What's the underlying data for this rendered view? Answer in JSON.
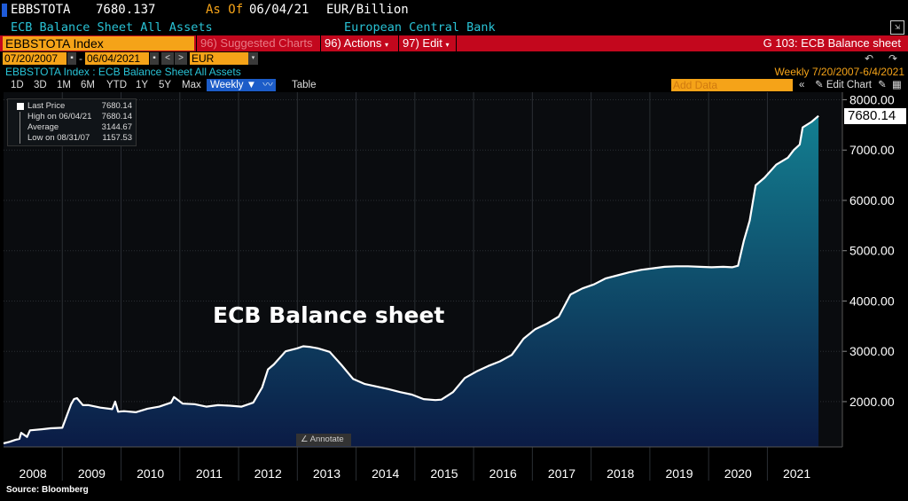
{
  "header": {
    "ticker": "EBBSTOTA",
    "price": "7680.137",
    "as_of_label": "As Of",
    "as_of_date": "06/04/21",
    "units": "EUR/Billion",
    "description": "ECB Balance Sheet All Assets",
    "source_name": "European Central Bank"
  },
  "toolbar": {
    "index_field": "EBBSTOTA Index",
    "suggested": "96) Suggested Charts",
    "actions": "96) Actions",
    "edit": "97) Edit",
    "chart_id": "G 103: ECB Balance sheet"
  },
  "dates": {
    "start": "07/20/2007",
    "dash": "-",
    "end": "06/04/2021",
    "currency": "EUR"
  },
  "subtitle": {
    "left": "EBBSTOTA Index : ECB Balance Sheet All Assets",
    "right": "Weekly  7/20/2007-6/4/2021"
  },
  "ranges": {
    "items": [
      "1D",
      "3D",
      "1M",
      "6M",
      "YTD",
      "1Y",
      "5Y",
      "Max"
    ],
    "selected": "Weekly ▼",
    "table": "Table",
    "add_data": "Add Data",
    "edit_chart": "Edit Chart"
  },
  "legend": {
    "last_label": "Last Price",
    "last_value": "7680.14",
    "high_label": "High on 06/04/21",
    "high_value": "7680.14",
    "avg_label": "Average",
    "avg_value": "3144.67",
    "low_label": "Low on 08/31/07",
    "low_value": "1157.53"
  },
  "annotate": "Annotate",
  "overlay_title": "ECB Balance sheet",
  "source": "Source:  Bloomberg",
  "colors": {
    "line": "#ffffff",
    "fill_top": "#137f91",
    "fill_bottom": "#0b1b45",
    "background": "#000000",
    "accent_orange": "#f5a318",
    "accent_red": "#c3071d"
  },
  "chart_data": {
    "type": "area",
    "title": "",
    "xlabel": "",
    "ylabel": "",
    "ylim": [
      1100,
      8150
    ],
    "yticks": [
      2000,
      3000,
      4000,
      5000,
      6000,
      7000,
      8000
    ],
    "ytick_labels": [
      "2000.00",
      "3000.00",
      "4000.00",
      "5000.00",
      "6000.00",
      "7000.00",
      "8000.00"
    ],
    "xlim": [
      2007.55,
      2021.6
    ],
    "xticks": [
      2008,
      2009,
      2010,
      2011,
      2012,
      2013,
      2014,
      2015,
      2016,
      2017,
      2018,
      2019,
      2020,
      2021
    ],
    "xtick_labels": [
      "2008",
      "2009",
      "2010",
      "2011",
      "2012",
      "2013",
      "2014",
      "2015",
      "2016",
      "2017",
      "2018",
      "2019",
      "2020",
      "2021"
    ],
    "last_value": "7680.14",
    "series": [
      {
        "x": [
          2007.55,
          2007.65,
          2007.75,
          2007.82,
          2007.85,
          2007.95,
          2008.0,
          2008.2,
          2008.35,
          2008.55,
          2008.7,
          2008.75,
          2008.8,
          2008.9,
          2009.0,
          2009.2,
          2009.4,
          2009.45,
          2009.5,
          2009.6,
          2009.8,
          2010.0,
          2010.2,
          2010.4,
          2010.45,
          2010.6,
          2010.8,
          2011.0,
          2011.2,
          2011.4,
          2011.6,
          2011.8,
          2011.95,
          2012.05,
          2012.15,
          2012.35,
          2012.55,
          2012.65,
          2012.75,
          2012.9,
          2013.1,
          2013.3,
          2013.5,
          2013.7,
          2013.9,
          2014.1,
          2014.3,
          2014.5,
          2014.7,
          2014.9,
          2015.0,
          2015.2,
          2015.4,
          2015.6,
          2015.8,
          2016.0,
          2016.2,
          2016.4,
          2016.6,
          2016.8,
          2017.0,
          2017.2,
          2017.4,
          2017.6,
          2017.8,
          2018.0,
          2018.2,
          2018.4,
          2018.6,
          2018.8,
          2019.0,
          2019.2,
          2019.4,
          2019.6,
          2019.8,
          2019.95,
          2020.05,
          2020.15,
          2020.25,
          2020.35,
          2020.5,
          2020.7,
          2020.9,
          2021.0,
          2021.1,
          2021.15,
          2021.3,
          2021.42
        ],
        "y": [
          1170,
          1200,
          1240,
          1260,
          1380,
          1300,
          1430,
          1450,
          1470,
          1480,
          1950,
          2050,
          2070,
          1930,
          1930,
          1880,
          1850,
          2000,
          1800,
          1810,
          1790,
          1860,
          1900,
          1980,
          2090,
          1960,
          1950,
          1900,
          1930,
          1920,
          1900,
          1980,
          2280,
          2640,
          2740,
          3000,
          3060,
          3100,
          3090,
          3060,
          2990,
          2730,
          2450,
          2350,
          2300,
          2250,
          2190,
          2140,
          2050,
          2030,
          2040,
          2190,
          2470,
          2600,
          2710,
          2800,
          2930,
          3250,
          3440,
          3550,
          3690,
          4130,
          4250,
          4330,
          4450,
          4510,
          4570,
          4620,
          4650,
          4680,
          4690,
          4690,
          4680,
          4670,
          4680,
          4670,
          4700,
          5200,
          5600,
          6300,
          6450,
          6710,
          6850,
          7000,
          7110,
          7450,
          7560,
          7680
        ]
      }
    ]
  }
}
